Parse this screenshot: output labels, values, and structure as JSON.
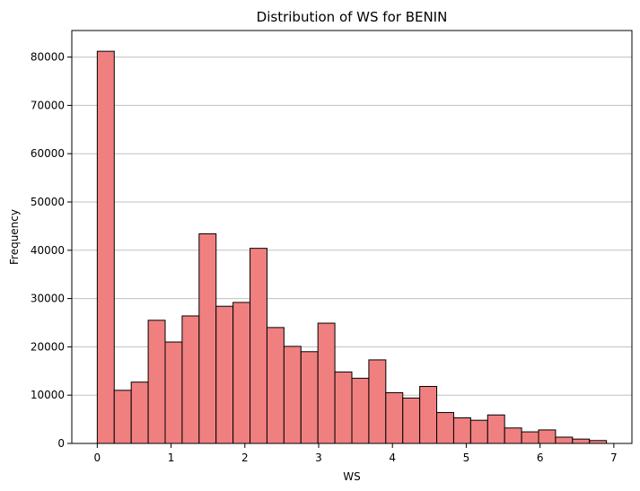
{
  "chart_data": {
    "type": "bar",
    "title": "Distribution of WS for BENIN",
    "xlabel": "WS",
    "ylabel": "Frequency",
    "bar_color": "#f08080",
    "edge_color": "#000000",
    "grid": {
      "y": true,
      "x": false,
      "color": "#c0c0c0"
    },
    "xlim": [
      -0.345,
      7.245
    ],
    "ylim": [
      0,
      85500
    ],
    "xticks": [
      0,
      1,
      2,
      3,
      4,
      5,
      6,
      7
    ],
    "yticks": [
      0,
      10000,
      20000,
      30000,
      40000,
      50000,
      60000,
      70000,
      80000
    ],
    "bins": {
      "start": 0,
      "width": 0.23,
      "counts": [
        81200,
        11000,
        12700,
        25500,
        21000,
        26400,
        43400,
        28400,
        29200,
        40400,
        24000,
        20100,
        19000,
        24900,
        14800,
        13500,
        17300,
        10500,
        9400,
        11800,
        6400,
        5300,
        4800,
        5900,
        3200,
        2400,
        2800,
        1300,
        900,
        600
      ]
    }
  }
}
